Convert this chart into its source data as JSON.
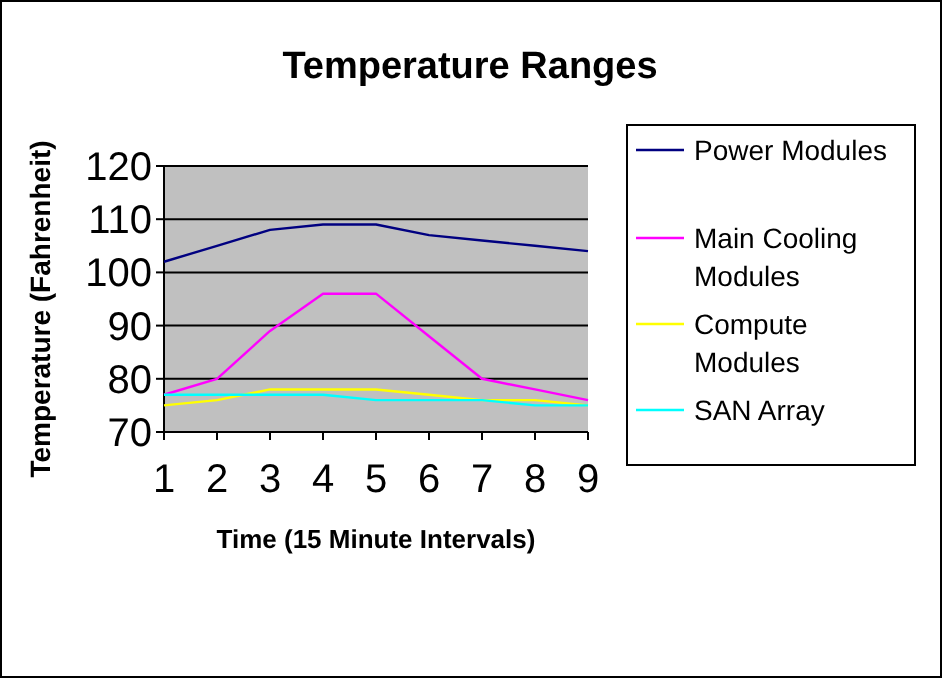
{
  "chart_data": {
    "type": "line",
    "title": "Temperature Ranges",
    "xlabel": "Time (15 Minute Intervals)",
    "ylabel": "Temperature (Fahrenheit)",
    "x": [
      1,
      2,
      3,
      4,
      5,
      6,
      7,
      8,
      9
    ],
    "xlim": [
      1,
      9
    ],
    "xticks": [
      1,
      2,
      3,
      4,
      5,
      6,
      7,
      8,
      9
    ],
    "ylim": [
      70,
      120
    ],
    "yticks": [
      70,
      80,
      90,
      100,
      110,
      120
    ],
    "grid": "y",
    "legend": "right",
    "marker": "none",
    "series": [
      {
        "name": "Power Modules",
        "color": "#000080",
        "values": [
          102,
          105,
          108,
          109,
          109,
          107,
          106,
          105,
          104
        ]
      },
      {
        "name": "Main Cooling Modules",
        "color": "#ff00ff",
        "values": [
          77,
          80,
          89,
          96,
          96,
          88,
          80,
          78,
          76
        ]
      },
      {
        "name": "Compute Modules",
        "color": "#ffff00",
        "values": [
          75,
          76,
          78,
          78,
          78,
          77,
          76,
          76,
          75
        ]
      },
      {
        "name": "SAN Array",
        "color": "#00ffff",
        "values": [
          77,
          77,
          77,
          77,
          76,
          76,
          76,
          75,
          75
        ]
      }
    ]
  }
}
